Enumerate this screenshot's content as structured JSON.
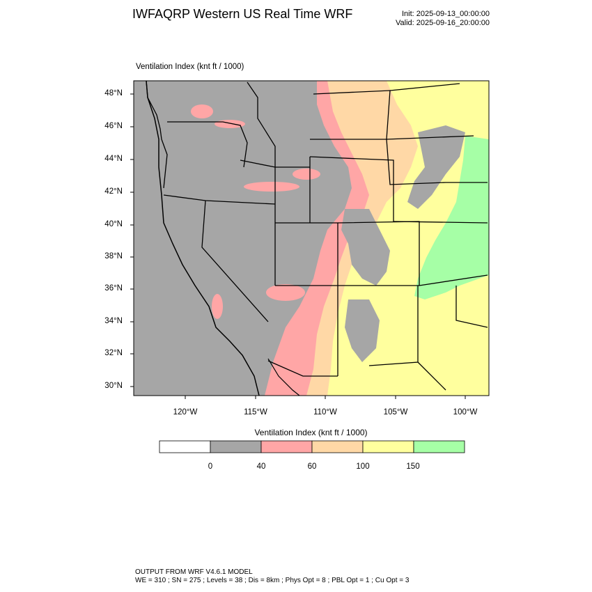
{
  "header": {
    "title": "IWFAQRP Western US Real Time WRF",
    "init": "Init: 2025-09-13_00:00:00",
    "valid": "Valid: 2025-09-16_20:00:00"
  },
  "map": {
    "field_label": "Ventilation Index   (knt ft / 1000)",
    "lat_labels": [
      "48°N",
      "46°N",
      "44°N",
      "42°N",
      "40°N",
      "38°N",
      "36°N",
      "34°N",
      "32°N",
      "30°N"
    ],
    "lon_labels": [
      "120°W",
      "115°W",
      "110°W",
      "105°W",
      "100°W"
    ],
    "colors": {
      "gray": "#a6a6a6",
      "pink": "#ffa6a6",
      "tan": "#ffd8a6",
      "yellow": "#ffff9e",
      "green": "#a6ffa6",
      "border": "#000000"
    }
  },
  "colorbar": {
    "title": "Ventilation Index   (knt ft / 1000)",
    "bins": [
      {
        "color": "#ffffff"
      },
      {
        "color": "#a6a6a6"
      },
      {
        "color": "#ffa6a6"
      },
      {
        "color": "#ffd8a6"
      },
      {
        "color": "#ffff9e"
      },
      {
        "color": "#a6ffa6"
      }
    ],
    "labels": [
      "0",
      "40",
      "60",
      "100",
      "150"
    ]
  },
  "footer": {
    "line1": "OUTPUT FROM WRF V4.6.1 MODEL",
    "line2": "WE = 310 ; SN = 275 ; Levels = 38 ; Dis = 8km ; Phys Opt = 8 ; PBL Opt = 1 ; Cu Opt = 3"
  }
}
